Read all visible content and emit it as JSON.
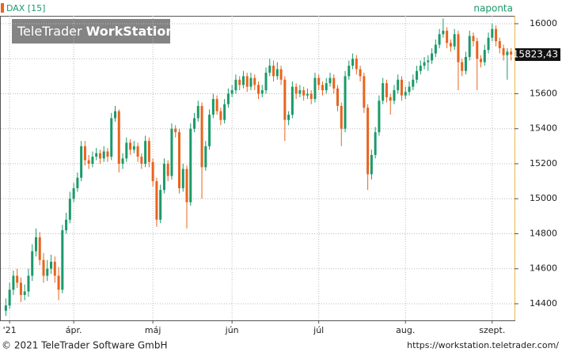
{
  "chart_data": {
    "type": "candlestick",
    "instrument": "DAX [15]",
    "period": "naponta",
    "watermark": [
      "TeleTrader",
      "WorkStation"
    ],
    "footer_left": "© 2021 TeleTrader Software GmbH",
    "footer_right": "https://workstation.teletrader.com/",
    "up_color": "#1a9a6a",
    "down_color": "#e8641e",
    "ylim": [
      14305,
      16045
    ],
    "yticks": [
      14400,
      14600,
      14800,
      15000,
      15200,
      15400,
      15600,
      15800,
      16000
    ],
    "grid": true,
    "last_value": 15823.43,
    "last_label": "15823,43",
    "categories": [
      null,
      "'21",
      null,
      null,
      null,
      null,
      null,
      null,
      null,
      null,
      null,
      null,
      null,
      null,
      null,
      null,
      null,
      null,
      "ápr.",
      null,
      null,
      null,
      null,
      null,
      null,
      null,
      null,
      null,
      null,
      null,
      null,
      null,
      null,
      null,
      null,
      null,
      null,
      null,
      null,
      "máj",
      null,
      null,
      null,
      null,
      null,
      null,
      null,
      null,
      null,
      null,
      null,
      null,
      null,
      null,
      null,
      null,
      null,
      null,
      null,
      null,
      "jún",
      null,
      null,
      null,
      null,
      null,
      null,
      null,
      null,
      null,
      null,
      null,
      null,
      null,
      null,
      null,
      null,
      null,
      null,
      null,
      null,
      null,
      null,
      "júl",
      null,
      null,
      null,
      null,
      null,
      null,
      null,
      null,
      null,
      null,
      null,
      null,
      null,
      null,
      null,
      null,
      null,
      null,
      null,
      null,
      null,
      null,
      "aug.",
      null,
      null,
      null,
      null,
      null,
      null,
      null,
      null,
      null,
      null,
      null,
      null,
      null,
      null,
      null,
      null,
      null,
      null,
      null,
      null,
      null,
      null,
      "szept.",
      null,
      null,
      null,
      null,
      null
    ],
    "candles": [
      [
        14360,
        14430,
        14330,
        14390
      ],
      [
        14390,
        14520,
        14370,
        14480
      ],
      [
        14480,
        14590,
        14450,
        14560
      ],
      [
        14560,
        14600,
        14490,
        14520
      ],
      [
        14520,
        14550,
        14410,
        14450
      ],
      [
        14450,
        14510,
        14420,
        14470
      ],
      [
        14470,
        14600,
        14440,
        14560
      ],
      [
        14560,
        14740,
        14530,
        14700
      ],
      [
        14700,
        14830,
        14670,
        14780
      ],
      [
        14780,
        14810,
        14620,
        14650
      ],
      [
        14650,
        14690,
        14520,
        14560
      ],
      [
        14560,
        14650,
        14530,
        14600
      ],
      [
        14600,
        14680,
        14570,
        14640
      ],
      [
        14640,
        14670,
        14520,
        14560
      ],
      [
        14560,
        14610,
        14420,
        14480
      ],
      [
        14480,
        14850,
        14460,
        14820
      ],
      [
        14820,
        14920,
        14800,
        14880
      ],
      [
        14880,
        15040,
        14860,
        15000
      ],
      [
        15000,
        15090,
        14980,
        15060
      ],
      [
        15060,
        15150,
        15040,
        15120
      ],
      [
        15120,
        15330,
        15100,
        15300
      ],
      [
        15300,
        15330,
        15190,
        15220
      ],
      [
        15220,
        15250,
        15170,
        15200
      ],
      [
        15200,
        15270,
        15180,
        15240
      ],
      [
        15240,
        15290,
        15220,
        15260
      ],
      [
        15260,
        15280,
        15200,
        15230
      ],
      [
        15230,
        15300,
        15210,
        15270
      ],
      [
        15270,
        15290,
        15210,
        15240
      ],
      [
        15240,
        15490,
        15220,
        15460
      ],
      [
        15460,
        15530,
        15440,
        15500
      ],
      [
        15500,
        15510,
        15150,
        15200
      ],
      [
        15200,
        15260,
        15170,
        15230
      ],
      [
        15230,
        15350,
        15210,
        15320
      ],
      [
        15320,
        15340,
        15250,
        15280
      ],
      [
        15280,
        15330,
        15260,
        15300
      ],
      [
        15300,
        15320,
        15210,
        15240
      ],
      [
        15240,
        15260,
        15170,
        15200
      ],
      [
        15200,
        15360,
        15180,
        15330
      ],
      [
        15330,
        15350,
        15180,
        15210
      ],
      [
        15210,
        15230,
        15070,
        15100
      ],
      [
        15100,
        15120,
        14840,
        14880
      ],
      [
        14880,
        15080,
        14860,
        15050
      ],
      [
        15050,
        15230,
        15030,
        15200
      ],
      [
        15200,
        15220,
        15100,
        15130
      ],
      [
        15130,
        15430,
        15110,
        15400
      ],
      [
        15400,
        15420,
        15350,
        15380
      ],
      [
        15380,
        15400,
        15030,
        15060
      ],
      [
        15060,
        15200,
        15040,
        15170
      ],
      [
        15170,
        15190,
        14830,
        14980
      ],
      [
        14980,
        15430,
        14960,
        15400
      ],
      [
        15400,
        15490,
        15380,
        15460
      ],
      [
        15460,
        15560,
        15440,
        15530
      ],
      [
        15530,
        15550,
        15000,
        15180
      ],
      [
        15180,
        15330,
        15160,
        15300
      ],
      [
        15300,
        15510,
        15280,
        15480
      ],
      [
        15480,
        15600,
        15460,
        15570
      ],
      [
        15570,
        15590,
        15480,
        15500
      ],
      [
        15500,
        15520,
        15420,
        15450
      ],
      [
        15450,
        15570,
        15430,
        15540
      ],
      [
        15540,
        15630,
        15520,
        15600
      ],
      [
        15600,
        15650,
        15580,
        15620
      ],
      [
        15620,
        15710,
        15600,
        15680
      ],
      [
        15680,
        15700,
        15620,
        15650
      ],
      [
        15650,
        15730,
        15630,
        15700
      ],
      [
        15700,
        15720,
        15610,
        15640
      ],
      [
        15640,
        15720,
        15620,
        15690
      ],
      [
        15690,
        15710,
        15620,
        15650
      ],
      [
        15650,
        15670,
        15570,
        15600
      ],
      [
        15600,
        15650,
        15580,
        15620
      ],
      [
        15620,
        15750,
        15600,
        15720
      ],
      [
        15720,
        15800,
        15700,
        15760
      ],
      [
        15760,
        15790,
        15670,
        15700
      ],
      [
        15700,
        15780,
        15680,
        15740
      ],
      [
        15740,
        15760,
        15650,
        15680
      ],
      [
        15680,
        15700,
        15330,
        15450
      ],
      [
        15450,
        15500,
        15420,
        15480
      ],
      [
        15480,
        15670,
        15460,
        15640
      ],
      [
        15640,
        15660,
        15570,
        15600
      ],
      [
        15600,
        15650,
        15580,
        15620
      ],
      [
        15620,
        15640,
        15560,
        15590
      ],
      [
        15590,
        15630,
        15570,
        15600
      ],
      [
        15600,
        15620,
        15540,
        15570
      ],
      [
        15570,
        15720,
        15550,
        15690
      ],
      [
        15690,
        15710,
        15620,
        15650
      ],
      [
        15650,
        15670,
        15590,
        15620
      ],
      [
        15620,
        15690,
        15600,
        15660
      ],
      [
        15660,
        15720,
        15640,
        15690
      ],
      [
        15690,
        15710,
        15600,
        15630
      ],
      [
        15630,
        15650,
        15500,
        15530
      ],
      [
        15530,
        15550,
        15300,
        15400
      ],
      [
        15400,
        15730,
        15380,
        15700
      ],
      [
        15700,
        15790,
        15680,
        15760
      ],
      [
        15760,
        15830,
        15740,
        15800
      ],
      [
        15800,
        15820,
        15710,
        15740
      ],
      [
        15740,
        15760,
        15670,
        15700
      ],
      [
        15700,
        15720,
        15490,
        15520
      ],
      [
        15520,
        15540,
        15050,
        15140
      ],
      [
        15140,
        15280,
        15110,
        15250
      ],
      [
        15250,
        15410,
        15230,
        15380
      ],
      [
        15380,
        15590,
        15360,
        15560
      ],
      [
        15560,
        15690,
        15540,
        15660
      ],
      [
        15660,
        15680,
        15550,
        15580
      ],
      [
        15580,
        15600,
        15480,
        15560
      ],
      [
        15560,
        15650,
        15540,
        15620
      ],
      [
        15620,
        15710,
        15600,
        15680
      ],
      [
        15680,
        15700,
        15560,
        15590
      ],
      [
        15590,
        15640,
        15570,
        15610
      ],
      [
        15610,
        15670,
        15590,
        15640
      ],
      [
        15640,
        15710,
        15620,
        15680
      ],
      [
        15680,
        15760,
        15660,
        15730
      ],
      [
        15730,
        15790,
        15710,
        15760
      ],
      [
        15760,
        15810,
        15740,
        15780
      ],
      [
        15780,
        15820,
        15730,
        15790
      ],
      [
        15790,
        15860,
        15770,
        15830
      ],
      [
        15830,
        15910,
        15810,
        15880
      ],
      [
        15880,
        15970,
        15860,
        15940
      ],
      [
        15940,
        16030,
        15920,
        15960
      ],
      [
        15960,
        15980,
        15860,
        15890
      ],
      [
        15890,
        15910,
        15840,
        15870
      ],
      [
        15870,
        15970,
        15850,
        15940
      ],
      [
        15940,
        15960,
        15620,
        15780
      ],
      [
        15780,
        15800,
        15700,
        15730
      ],
      [
        15730,
        15840,
        15710,
        15810
      ],
      [
        15810,
        15960,
        15790,
        15930
      ],
      [
        15930,
        15950,
        15870,
        15900
      ],
      [
        15900,
        15920,
        15620,
        15800
      ],
      [
        15800,
        15820,
        15750,
        15780
      ],
      [
        15780,
        15880,
        15760,
        15850
      ],
      [
        15850,
        15950,
        15830,
        15920
      ],
      [
        15920,
        16000,
        15900,
        15970
      ],
      [
        15970,
        15990,
        15870,
        15900
      ],
      [
        15900,
        15920,
        15830,
        15860
      ],
      [
        15860,
        15880,
        15790,
        15820
      ],
      [
        15820,
        15860,
        15680,
        15840
      ],
      [
        15840,
        15860,
        15790,
        15823.43
      ]
    ]
  }
}
